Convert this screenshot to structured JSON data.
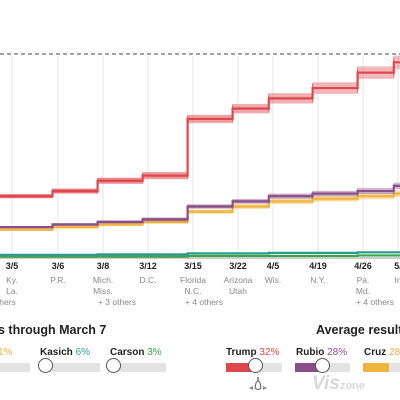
{
  "dates": [
    "3/5",
    "3/6",
    "3/8",
    "3/12",
    "3/15",
    "3/22",
    "4/5",
    "4/19",
    "4/26",
    "5/"
  ],
  "states": [
    [
      "Ky.",
      "La."
    ],
    [
      "P.R."
    ],
    [
      "Mich.",
      "Miss."
    ],
    [
      "D.C."
    ],
    [
      "Florida",
      "N.C."
    ],
    [
      "Arizona",
      "Utah"
    ],
    [
      "Wis."
    ],
    [
      "N.Y."
    ],
    [
      "Pa.",
      "Md."
    ],
    [
      "In"
    ]
  ],
  "others_left": "others",
  "others_labels": [
    "+ 3 others",
    "+ 4 others",
    "+ 4 others"
  ],
  "left_header": "s through March 7",
  "right_header": "Average results",
  "left_candidates": {
    "partial_pct": "1%",
    "kasich": {
      "name": "Kasich",
      "pct": "6%"
    },
    "carson": {
      "name": "Carson",
      "pct": "3%"
    }
  },
  "right_candidates": {
    "trump": {
      "name": "Trump",
      "pct": "32%"
    },
    "rubio": {
      "name": "Rubio",
      "pct": "28%"
    },
    "cruz": {
      "name": "Cruz",
      "pct": "28"
    }
  },
  "watermark": {
    "big": "Vis",
    "small": "zone"
  },
  "colors": {
    "trump": "#e0474c",
    "rubio": "#8a4f88",
    "cruz": "#f0b43c",
    "kasich": "#2e9b8f",
    "carson": "#3aa64a",
    "dashed_line": "#444444"
  },
  "chart_data": {
    "type": "line",
    "x": [
      "3/5",
      "3/6",
      "3/8",
      "3/12",
      "3/15",
      "3/22",
      "4/5",
      "4/19",
      "4/26",
      "5/"
    ],
    "series": [
      {
        "name": "Trump",
        "values": [
          12,
          13,
          15,
          16,
          27,
          29,
          31,
          33,
          36,
          38
        ]
      },
      {
        "name": "Rubio",
        "values": [
          6,
          6.5,
          7,
          7.5,
          10,
          11,
          12,
          12.5,
          13,
          14
        ]
      },
      {
        "name": "Cruz",
        "values": [
          5.5,
          6,
          6.5,
          7,
          9,
          10,
          11,
          11.5,
          12,
          12.5
        ]
      },
      {
        "name": "Kasich",
        "values": [
          0.6,
          0.6,
          0.7,
          0.7,
          0.9,
          0.9,
          1.0,
          1.0,
          1.1,
          1.1
        ]
      },
      {
        "name": "Carson",
        "values": [
          0.3,
          0.3,
          0.3,
          0.3,
          0.4,
          0.4,
          0.4,
          0.4,
          0.5,
          0.5
        ]
      }
    ]
  }
}
